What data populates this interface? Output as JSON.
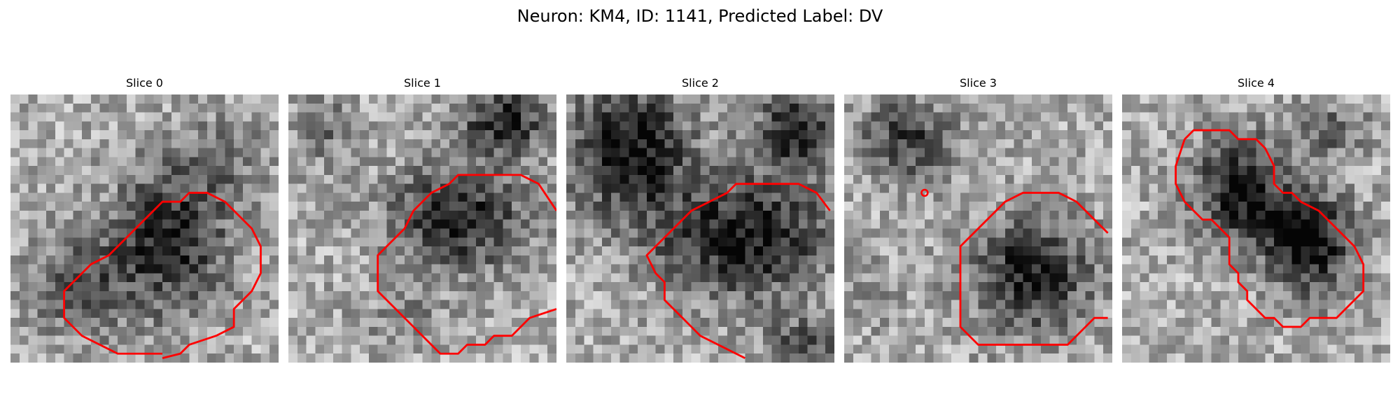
{
  "figure": {
    "title": "Neuron: KM4, ID: 1141, Predicted Label: DV"
  },
  "contour_color": "#ff0000",
  "panels": [
    {
      "title": "Slice 0"
    },
    {
      "title": "Slice 1"
    },
    {
      "title": "Slice 2"
    },
    {
      "title": "Slice 3"
    },
    {
      "title": "Slice 4"
    }
  ]
}
